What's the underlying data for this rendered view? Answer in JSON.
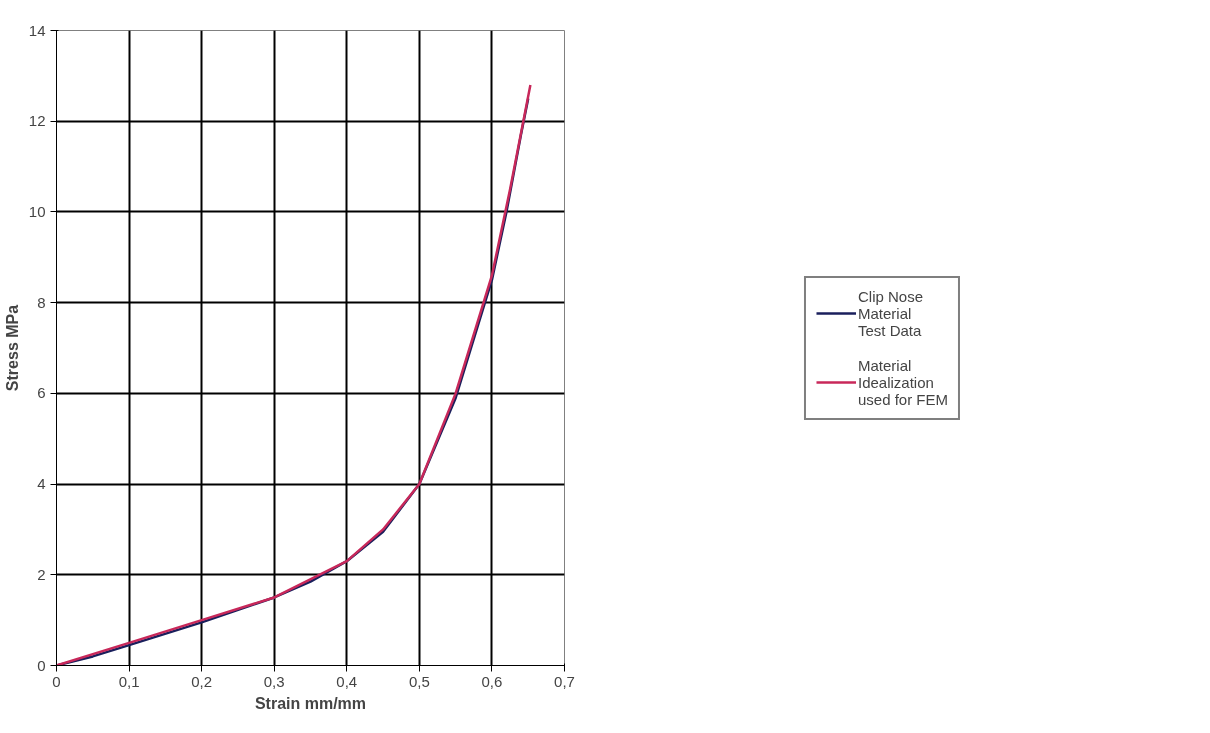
{
  "chart_data": {
    "type": "line",
    "xlabel": "Strain mm/mm",
    "ylabel": "Stress MPa",
    "xlim": [
      0,
      0.7
    ],
    "ylim": [
      0,
      14
    ],
    "xticks": [
      0,
      {
        "value": 0.1,
        "label": "0,1"
      },
      {
        "value": 0.2,
        "label": "0,2"
      },
      {
        "value": 0.3,
        "label": "0,3"
      },
      {
        "value": 0.4,
        "label": "0,4"
      },
      {
        "value": 0.5,
        "label": "0,5"
      },
      {
        "value": 0.6,
        "label": "0,6"
      },
      {
        "value": 0.7,
        "label": "0,7"
      }
    ],
    "yticks": [
      0,
      2,
      4,
      6,
      8,
      10,
      12,
      14
    ],
    "grid": true,
    "legend": "right",
    "line_style": "solid",
    "marker": "none",
    "series": [
      {
        "name": "Clip Nose Material Test Data",
        "color": "#1a1f5c",
        "x": [
          0,
          0.05,
          0.1,
          0.2,
          0.3,
          0.35,
          0.4,
          0.45,
          0.5,
          0.55,
          0.6,
          0.62,
          0.64,
          0.65
        ],
        "values": [
          0,
          0.2,
          0.45,
          0.95,
          1.5,
          1.85,
          2.3,
          2.95,
          4.0,
          5.9,
          8.5,
          10.0,
          11.7,
          12.5
        ]
      },
      {
        "name": "Material Idealization used for FEM",
        "color": "#c8285a",
        "x": [
          0,
          0.1,
          0.2,
          0.3,
          0.4,
          0.45,
          0.5,
          0.55,
          0.6,
          0.625,
          0.653
        ],
        "values": [
          0,
          0.5,
          1.0,
          1.5,
          2.3,
          3.0,
          4.0,
          6.0,
          8.6,
          10.5,
          12.8
        ]
      }
    ]
  }
}
